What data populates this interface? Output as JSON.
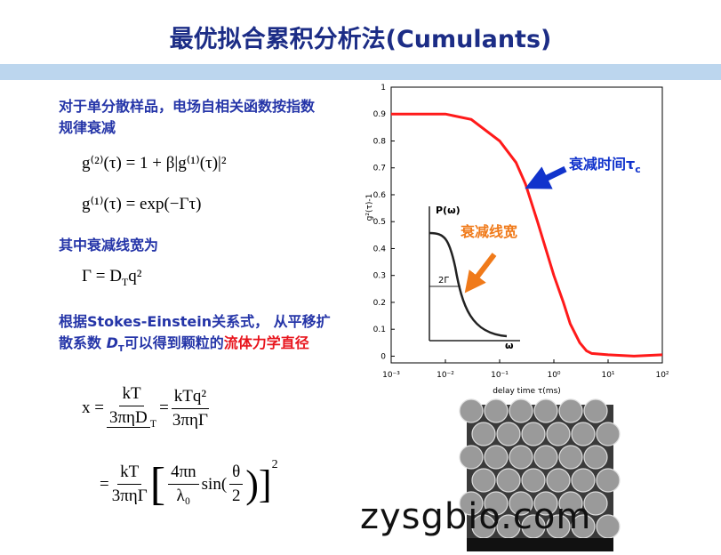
{
  "title": "最优拟合累积分析法(Cumulants)",
  "text": {
    "line1": "对于单分散样品，电场自相关函数按指数",
    "line2": "规律衰减",
    "line3": "其中衰减线宽为",
    "line4": "根据Stokes-Einstein关系式， 从平移扩",
    "line5a": "散系数 ",
    "line5b": "D",
    "line5c": "T",
    "line5d": "可以得到颗粒的",
    "line5e": "流体力学直径"
  },
  "formulas": {
    "eq1": "g⁽²⁾(τ) = 1 + β|g⁽¹⁾(τ)|²",
    "eq2": "g⁽¹⁾(τ) = exp(−Γτ)",
    "eq3": {
      "a": "Γ = D",
      "sub": "T",
      "b": "q²"
    },
    "eq4": {
      "lhs": "x =",
      "f1num": "kT",
      "f1den": "3πηD",
      "f1sub": "T",
      "eq": "=",
      "f2num": "kTq²",
      "f2den": "3πηΓ"
    },
    "eq5": {
      "eq": "=",
      "f1num": "kT",
      "f1den": "3πηΓ",
      "open": "[",
      "f2num": "4πn",
      "f2den": "λ₀",
      "sin": "sin(",
      "f3num": "θ",
      "f3den": "2",
      "close": ")]",
      "pow": "2"
    }
  },
  "figure": {
    "xlabel": "delay time τ(ms)",
    "ylabel": "g²(τ)-1",
    "xlim": [
      0.001,
      100
    ],
    "xticks": [
      {
        "value": 0.001,
        "label": "10⁻³"
      },
      {
        "value": 0.01,
        "label": "10⁻²"
      },
      {
        "value": 0.1,
        "label": "10⁻¹"
      },
      {
        "value": 1,
        "label": "10⁰"
      },
      {
        "value": 10,
        "label": "10¹"
      },
      {
        "value": 100,
        "label": "10²"
      }
    ],
    "ylim": [
      -0.025,
      1
    ],
    "yticks": [
      0,
      0.1,
      0.2,
      0.3,
      0.4,
      0.5,
      0.6,
      0.7,
      0.8,
      0.9,
      1
    ],
    "log_x": true,
    "color": "#ff1a1a",
    "x": [
      0.001,
      0.003,
      0.01,
      0.03,
      0.1,
      0.2,
      0.3,
      0.5,
      1,
      1.5,
      2,
      3,
      4,
      5,
      10,
      30,
      100
    ],
    "values": [
      0.9,
      0.9,
      0.9,
      0.88,
      0.8,
      0.72,
      0.64,
      0.5,
      0.3,
      0.2,
      0.12,
      0.05,
      0.02,
      0.01,
      0.005,
      0,
      0.005
    ],
    "annotation_main": "衰减时间τ",
    "annotation_sub": "c",
    "inset": {
      "ylabel": "P(ω)",
      "width": "2Γ",
      "xlabel": "ω",
      "caption": "衰减线宽"
    }
  },
  "watermark": "zysgbio.com"
}
